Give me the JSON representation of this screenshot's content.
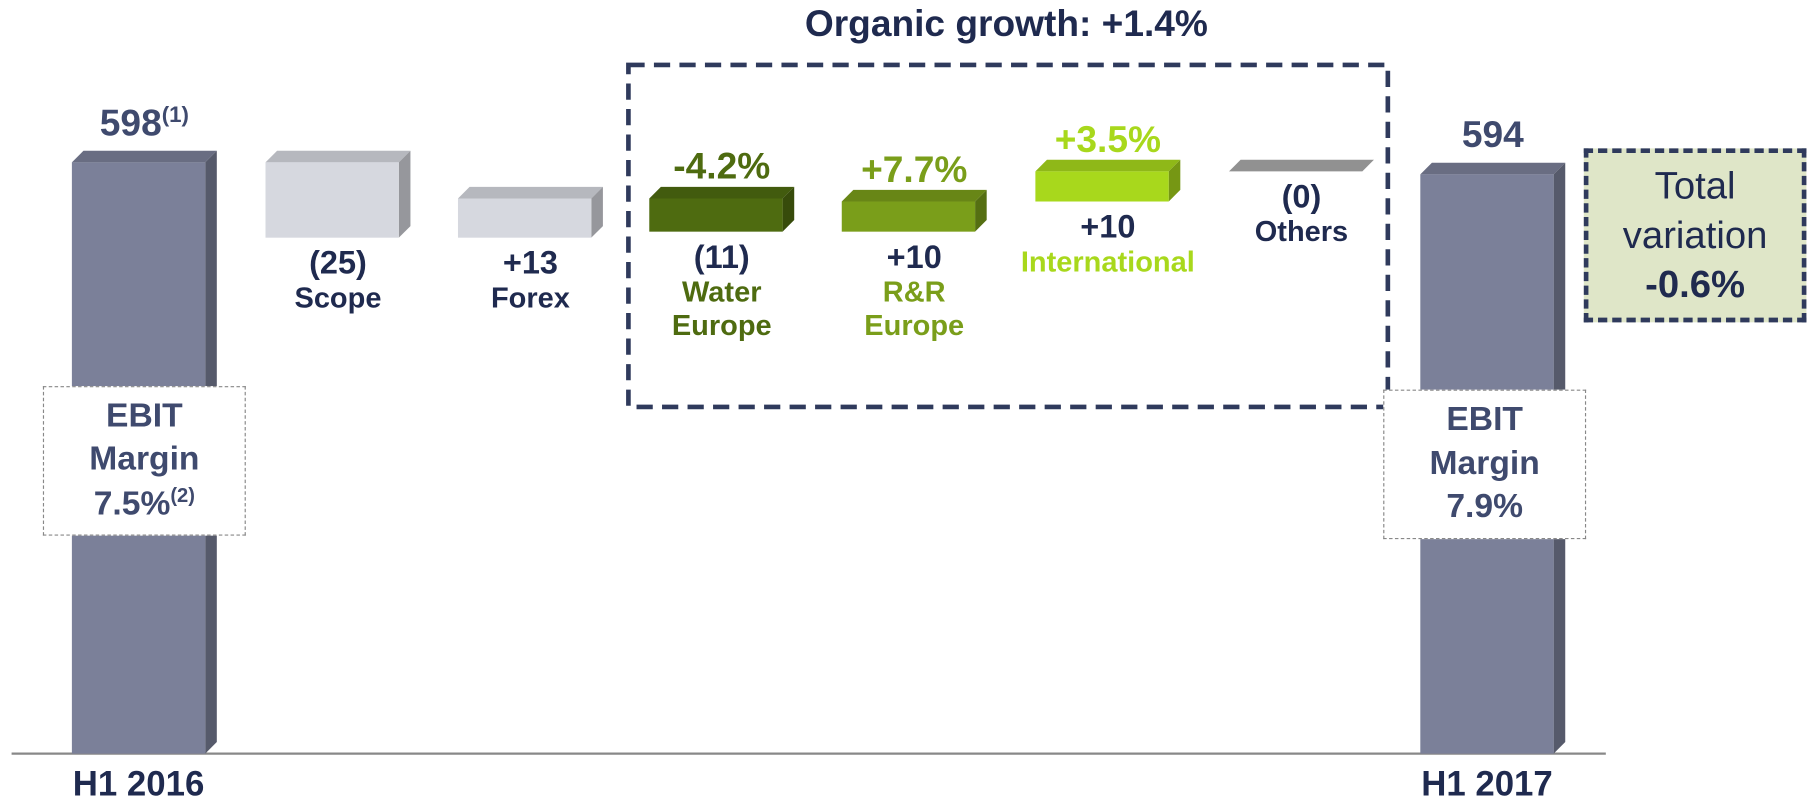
{
  "chart_data": {
    "type": "waterfall",
    "title": "Organic growth: +1.4%",
    "categories": [
      "H1 2016",
      "Scope",
      "Forex",
      "Water Europe",
      "R&R Europe",
      "International",
      "Others",
      "H1 2017"
    ],
    "values": [
      598,
      -25,
      13,
      -11,
      10,
      10,
      0,
      594
    ],
    "value_labels": [
      "598",
      "(25)",
      "+13",
      "(11)",
      "+10",
      "+10",
      "(0)",
      "594"
    ],
    "value_notes": [
      "(1)",
      null,
      null,
      null,
      null,
      null,
      null,
      null
    ],
    "measure": [
      "absolute",
      "relative",
      "relative",
      "relative",
      "relative",
      "relative",
      "relative",
      "absolute"
    ],
    "growth_labels": [
      null,
      null,
      null,
      "-4.2%",
      "+7.7%",
      "+3.5%",
      null,
      null
    ],
    "colors": [
      "#7b8099",
      "#d6d8df",
      "#d6d8df",
      "#4e6b10",
      "#7a9e1a",
      "#a8d81c",
      "#aaaaaa",
      "#7b8099"
    ],
    "ebit_margins": [
      {
        "label": "EBIT Margin",
        "value": "7.5%",
        "note": "(2)"
      },
      {
        "label": "EBIT Margin",
        "value": "7.9%",
        "note": null
      }
    ],
    "total_variation": {
      "label": "Total variation",
      "value": "-0.6%"
    }
  }
}
